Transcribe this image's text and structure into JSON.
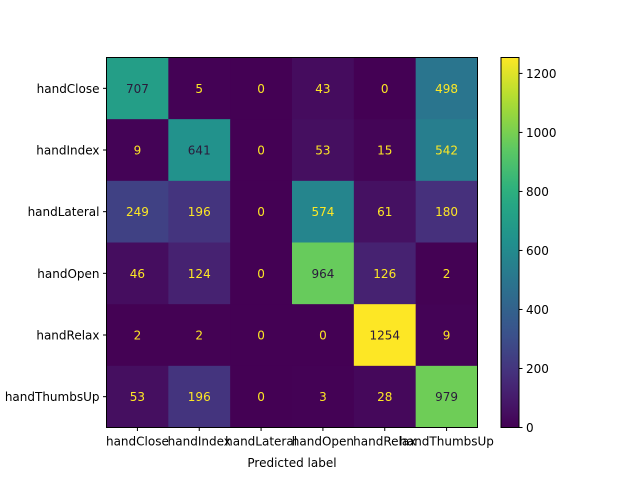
{
  "chart_data": {
    "type": "heatmap",
    "title": "",
    "xlabel": "Predicted label",
    "ylabel": "",
    "x_categories": [
      "handClose",
      "handIndex",
      "handLateral",
      "handOpen",
      "handRelax",
      "handThumbsUp"
    ],
    "y_categories": [
      "handClose",
      "handIndex",
      "handLateral",
      "handOpen",
      "handRelax",
      "handThumbsUp"
    ],
    "values": [
      [
        707,
        5,
        0,
        43,
        0,
        498
      ],
      [
        9,
        641,
        0,
        53,
        15,
        542
      ],
      [
        249,
        196,
        0,
        574,
        61,
        180
      ],
      [
        46,
        124,
        0,
        964,
        126,
        2
      ],
      [
        2,
        2,
        0,
        0,
        1254,
        9
      ],
      [
        53,
        196,
        0,
        3,
        28,
        979
      ]
    ],
    "colormap": "viridis",
    "value_range": [
      0,
      1254
    ],
    "colorbar": {
      "ticks": [
        0,
        200,
        400,
        600,
        800,
        1000,
        1200
      ]
    },
    "text_colors": {
      "dark_cell": "#fde725",
      "light_cell": "#2b1b3b"
    },
    "grid": false
  }
}
